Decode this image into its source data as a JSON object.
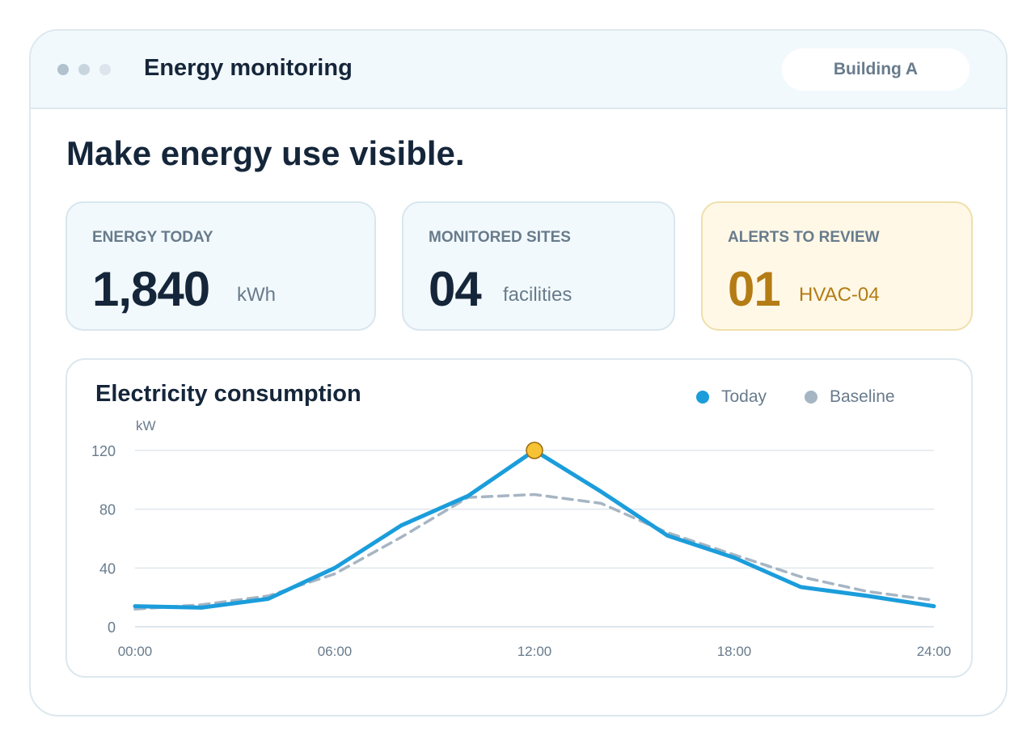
{
  "app": {
    "title": "Energy monitoring",
    "building": "Building A"
  },
  "headline": "Make energy use visible.",
  "kpis": {
    "energy": {
      "label": "ENERGY TODAY",
      "value": "1,840",
      "unit": "kWh"
    },
    "sites": {
      "label": "MONITORED SITES",
      "value": "04",
      "unit": "facilities"
    },
    "alerts": {
      "label": "ALERTS TO REVIEW",
      "value": "01",
      "unit": "HVAC-04"
    }
  },
  "colors": {
    "today": "#1b9ddb",
    "baseline": "#a6b5c3",
    "peak_marker": "#f7c335",
    "alert": "#b47c14"
  },
  "chart": {
    "title": "Electricity consumption",
    "legend": {
      "today": "Today",
      "baseline": "Baseline"
    }
  },
  "chart_data": {
    "type": "line",
    "title": "Electricity consumption",
    "ylabel": "kW",
    "xlabel": "",
    "ylim": [
      0,
      120
    ],
    "yticks": [
      0,
      40,
      80,
      120
    ],
    "xlim": [
      0,
      24
    ],
    "x_tick_labels": [
      "00:00",
      "06:00",
      "12:00",
      "18:00",
      "24:00"
    ],
    "x_tick_hours": [
      0,
      6,
      12,
      18,
      24
    ],
    "grid": true,
    "legend_position": "top-right",
    "x": [
      0,
      2,
      4,
      6,
      8,
      10,
      12,
      14,
      16,
      18,
      20,
      22,
      24
    ],
    "series": [
      {
        "name": "Today",
        "style": "solid",
        "values": [
          14,
          13,
          19,
          40,
          69,
          89,
          120,
          92,
          62,
          47,
          27,
          21,
          14
        ]
      },
      {
        "name": "Baseline",
        "style": "dashed",
        "values": [
          12,
          15,
          21,
          36,
          61,
          88,
          90,
          84,
          64,
          49,
          34,
          24,
          18
        ]
      }
    ],
    "highlight": {
      "series": "Today",
      "x": 12,
      "y": 120
    }
  }
}
